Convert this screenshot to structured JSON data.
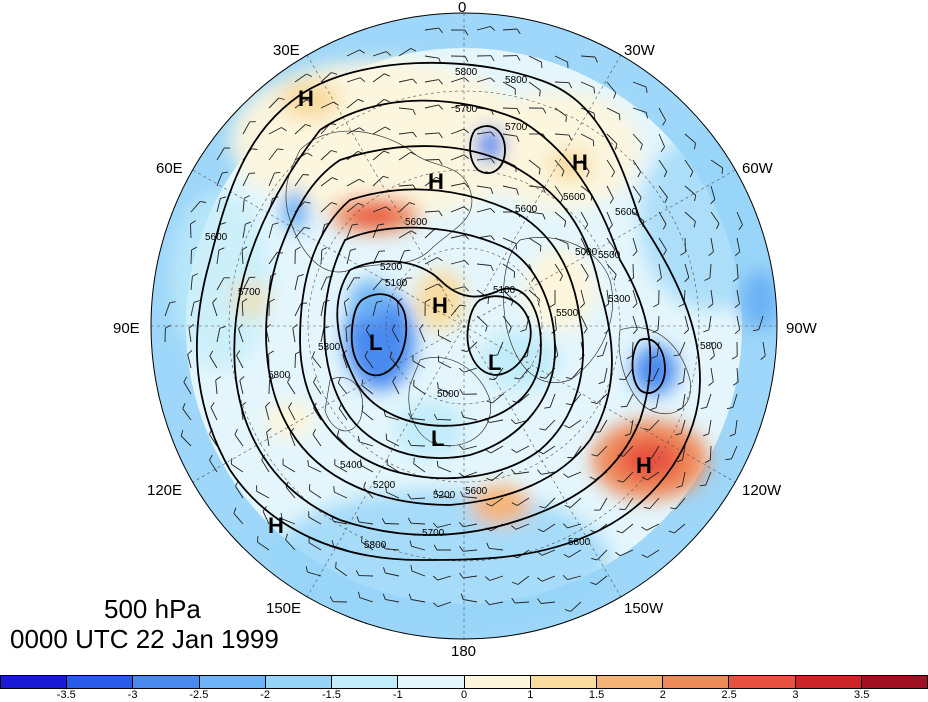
{
  "title": {
    "level": "500 hPa",
    "time": "0000 UTC 22 Jan 1999"
  },
  "lon_labels": {
    "top": "0",
    "bottom": "180",
    "left": "90E",
    "right": "90W",
    "e30": "30E",
    "e60": "60E",
    "e120": "120E",
    "e150": "150E",
    "w30": "30W",
    "w60": "60W",
    "w120": "120W",
    "w150": "150W"
  },
  "contour_labels": [
    "5800",
    "5800",
    "5700",
    "5700",
    "5600",
    "5600",
    "5600",
    "5100",
    "5100",
    "5300",
    "5200",
    "5200",
    "5000",
    "5000",
    "5600",
    "5700",
    "5800",
    "5800",
    "5500",
    "5500",
    "5400",
    "5600",
    "5700",
    "5800",
    "5800",
    "5300",
    "5200",
    "5600"
  ],
  "pressure_centers": [
    "H",
    "H",
    "H",
    "H",
    "H",
    "H",
    "L",
    "L",
    "L"
  ],
  "colorbar": {
    "ticks": [
      "-3.5",
      "-3",
      "-2.5",
      "-2",
      "-1.5",
      "-1",
      "0",
      "1",
      "1.5",
      "2",
      "2.5",
      "3",
      "3.5"
    ],
    "colors": [
      "#1a1ad6",
      "#2a5ae8",
      "#4a8af0",
      "#6cb2f4",
      "#96d4f8",
      "#c2ecfa",
      "#e4f6fc",
      "#fdf6dc",
      "#f8dca0",
      "#f4b478",
      "#ee8a5a",
      "#e85040",
      "#cc2428",
      "#a01020"
    ]
  }
}
